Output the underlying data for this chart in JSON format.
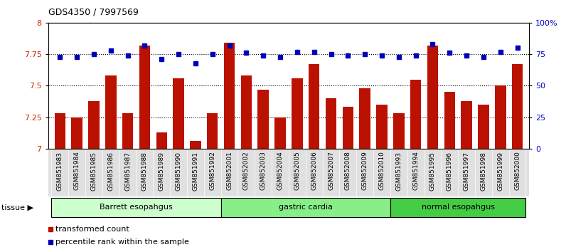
{
  "title": "GDS4350 / 7997569",
  "samples": [
    "GSM851983",
    "GSM851984",
    "GSM851985",
    "GSM851986",
    "GSM851987",
    "GSM851988",
    "GSM851989",
    "GSM851990",
    "GSM851991",
    "GSM851992",
    "GSM852001",
    "GSM852002",
    "GSM852003",
    "GSM852004",
    "GSM852005",
    "GSM852006",
    "GSM852007",
    "GSM852008",
    "GSM852009",
    "GSM852010",
    "GSM851993",
    "GSM851994",
    "GSM851995",
    "GSM851996",
    "GSM851997",
    "GSM851998",
    "GSM851999",
    "GSM852000"
  ],
  "bar_values": [
    7.28,
    7.25,
    7.38,
    7.58,
    7.28,
    7.82,
    7.13,
    7.56,
    7.06,
    7.28,
    7.84,
    7.58,
    7.47,
    7.25,
    7.56,
    7.67,
    7.4,
    7.33,
    7.48,
    7.35,
    7.28,
    7.55,
    7.82,
    7.45,
    7.38,
    7.35,
    7.5,
    7.67
  ],
  "dot_values": [
    73,
    73,
    75,
    78,
    74,
    82,
    71,
    75,
    68,
    75,
    82,
    76,
    74,
    73,
    77,
    77,
    75,
    74,
    75,
    74,
    73,
    74,
    83,
    76,
    74,
    73,
    77,
    80
  ],
  "groups": [
    {
      "label": "Barrett esopahgus",
      "start": 0,
      "end": 10,
      "color": "#ccffcc"
    },
    {
      "label": "gastric cardia",
      "start": 10,
      "end": 20,
      "color": "#88ee88"
    },
    {
      "label": "normal esopahgus",
      "start": 20,
      "end": 28,
      "color": "#44cc44"
    }
  ],
  "ylim_left": [
    7.0,
    8.0
  ],
  "ylim_right": [
    0,
    100
  ],
  "yticks_left": [
    7.0,
    7.25,
    7.5,
    7.75,
    8.0
  ],
  "ytick_labels_left": [
    "7",
    "7.25",
    "7.5",
    "7.75",
    "8"
  ],
  "yticks_right": [
    0,
    25,
    50,
    75,
    100
  ],
  "ytick_labels_right": [
    "0",
    "25",
    "50",
    "75",
    "100%"
  ],
  "bar_color": "#bb1100",
  "dot_color": "#0000bb",
  "dotted_line_values": [
    7.25,
    7.5,
    7.75
  ],
  "background_color": "#ffffff",
  "legend_items": [
    {
      "label": "transformed count",
      "color": "#bb1100"
    },
    {
      "label": "percentile rank within the sample",
      "color": "#0000bb"
    }
  ]
}
